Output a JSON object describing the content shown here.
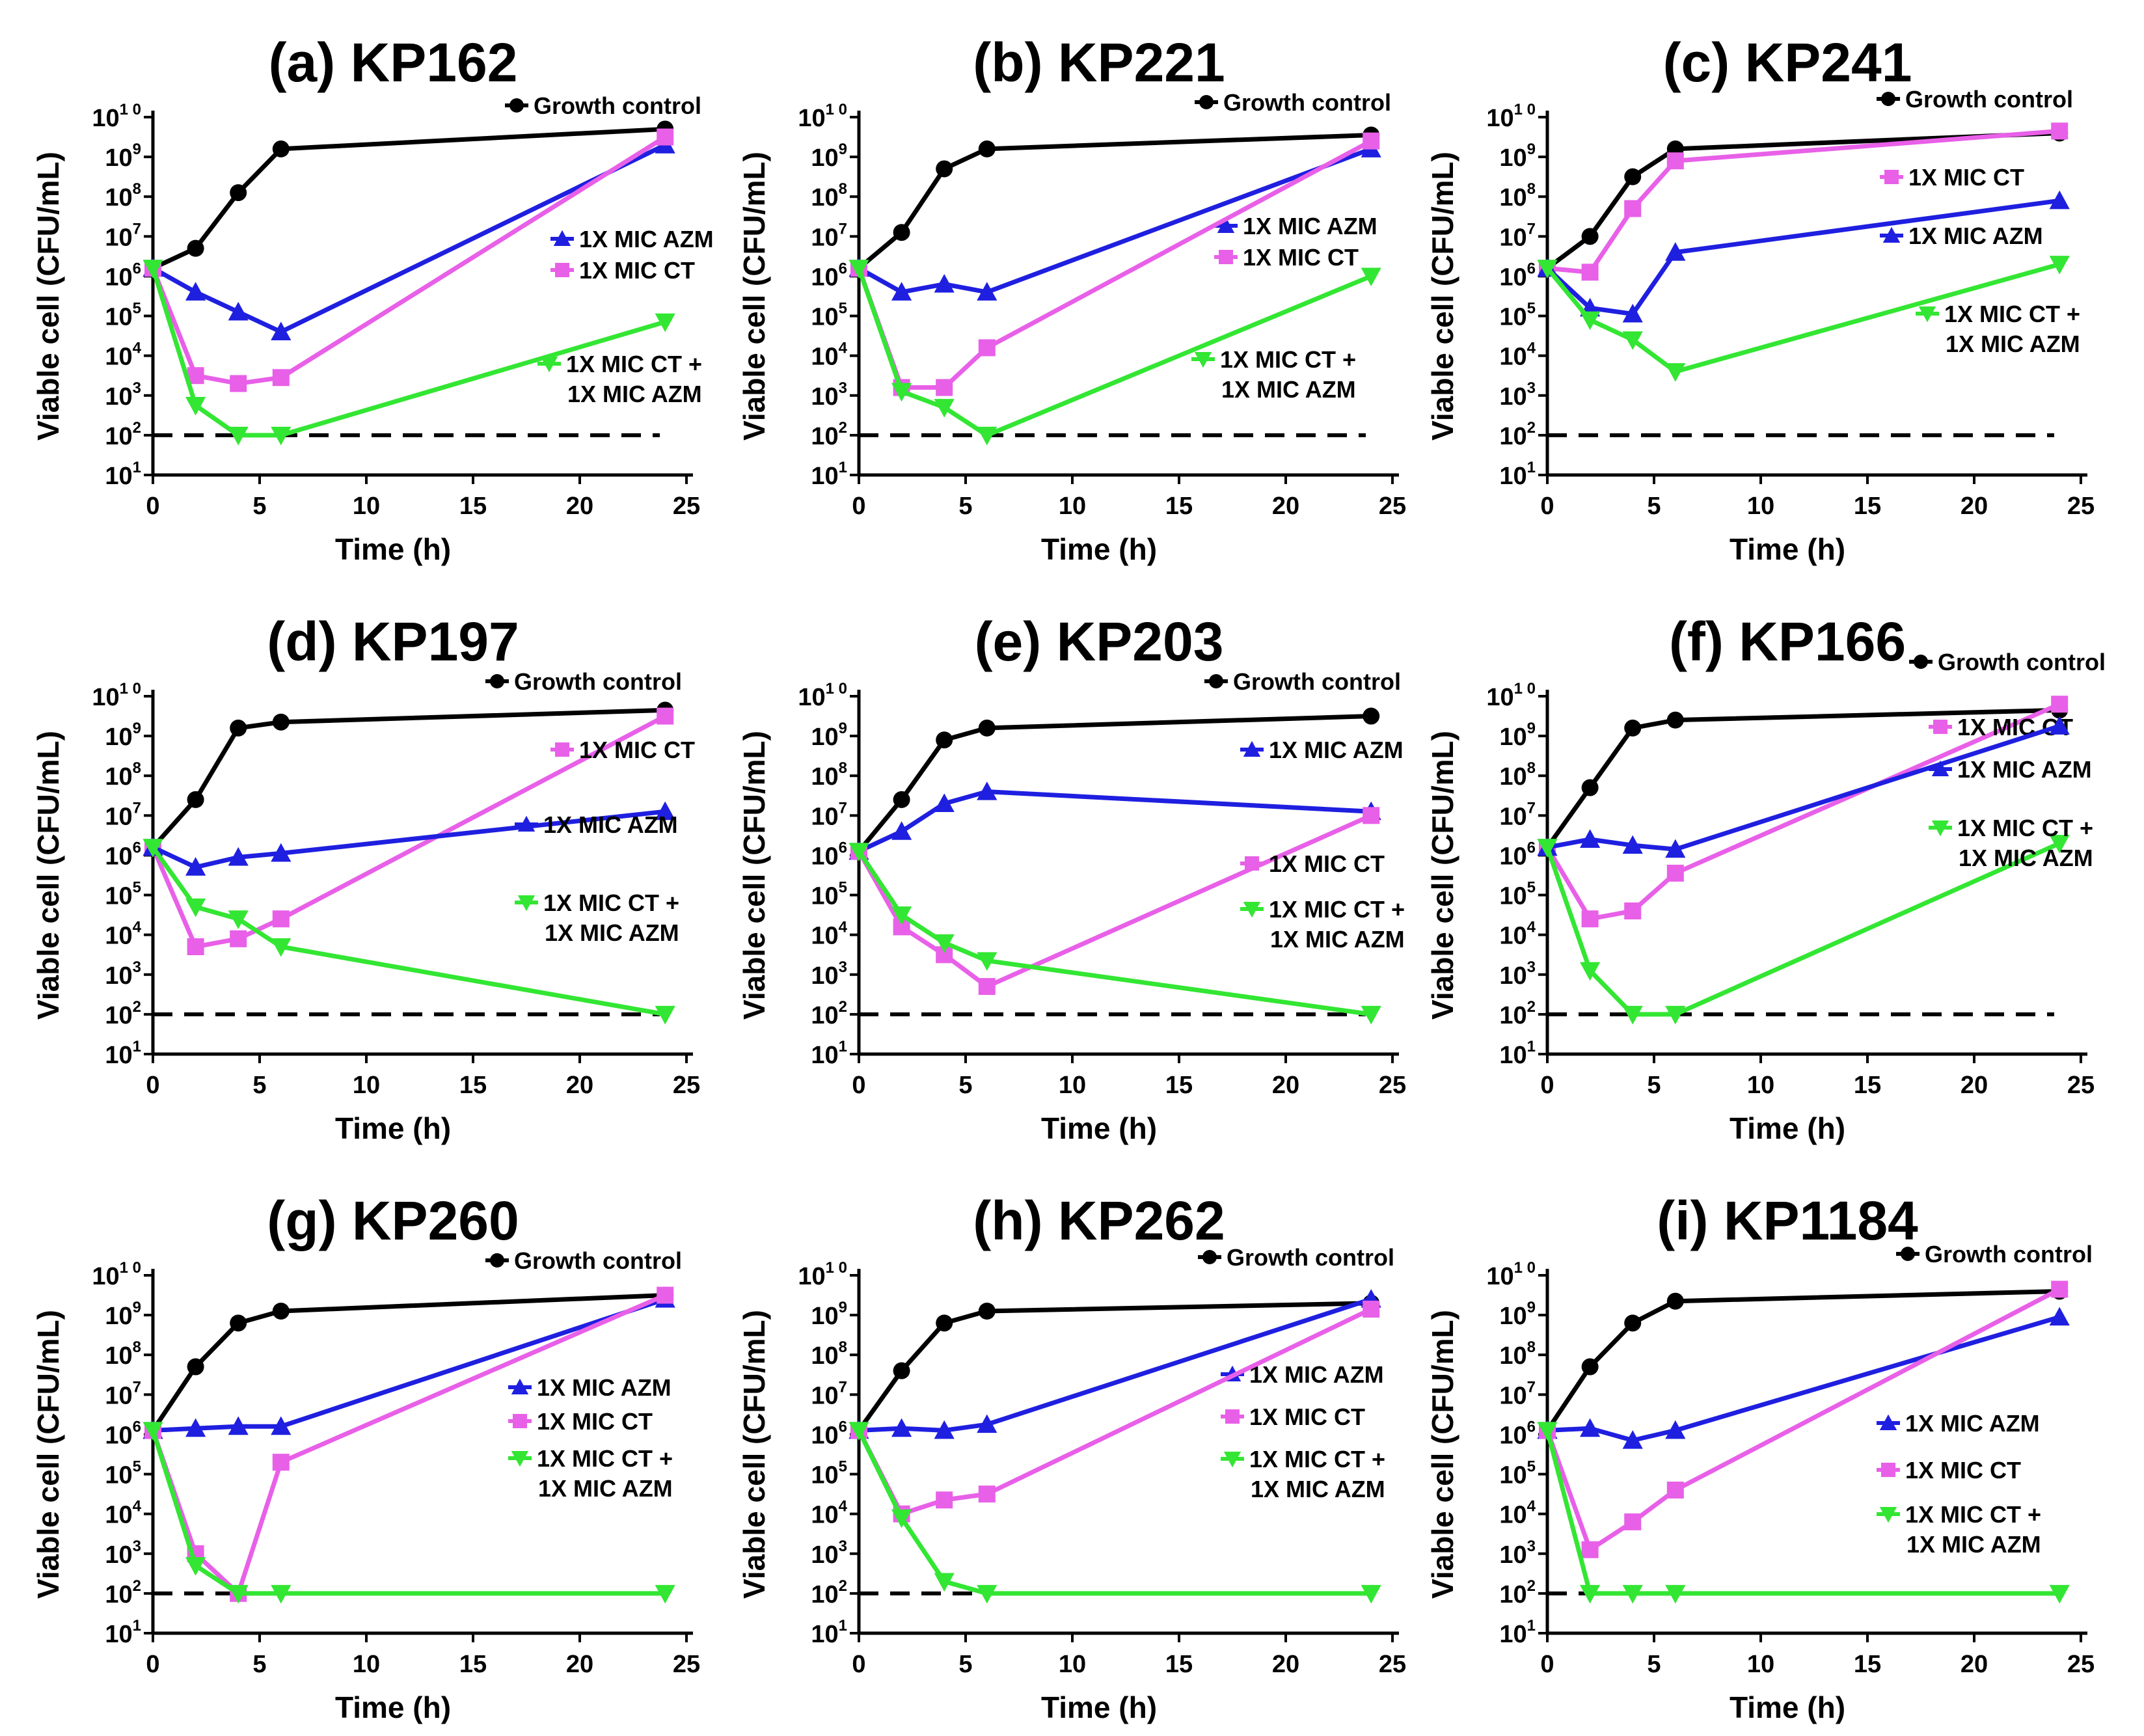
{
  "chart_data": [
    {
      "type": "line",
      "title": "(a) KP162",
      "xlabel": "Time (h)",
      "ylabel": "Viable cell (CFU/mL)",
      "xlim": [
        0,
        25
      ],
      "ylim_log10": [
        1,
        10
      ],
      "x_ticks": [
        0,
        5,
        10,
        15,
        20,
        25
      ],
      "threshold_log10": 2,
      "series": [
        {
          "name": "Growth control",
          "color": "#000000",
          "marker": "circle",
          "x": [
            0,
            2,
            4,
            6,
            24
          ],
          "log10_cfu": [
            6.2,
            6.7,
            8.1,
            9.2,
            9.7
          ]
        },
        {
          "name": "1X MIC AZM",
          "color": "#1f1fe0",
          "marker": "triangle",
          "x": [
            0,
            2,
            4,
            6,
            24
          ],
          "log10_cfu": [
            6.2,
            5.6,
            5.1,
            4.6,
            9.3
          ]
        },
        {
          "name": "1X MIC CT",
          "color": "#e860e8",
          "marker": "square",
          "x": [
            0,
            2,
            4,
            6,
            24
          ],
          "log10_cfu": [
            6.2,
            3.5,
            3.3,
            3.45,
            9.5
          ]
        },
        {
          "name": "1X MIC CT + 1X MIC AZM",
          "color": "#33e633",
          "marker": "triangle-down",
          "x": [
            0,
            2,
            4,
            6,
            24
          ],
          "log10_cfu": [
            6.2,
            2.75,
            2.0,
            2.0,
            4.85
          ]
        }
      ]
    },
    {
      "type": "line",
      "title": "(b) KP221",
      "xlabel": "Time (h)",
      "ylabel": "Viable cell (CFU/mL)",
      "xlim": [
        0,
        25
      ],
      "ylim_log10": [
        1,
        10
      ],
      "x_ticks": [
        0,
        5,
        10,
        15,
        20,
        25
      ],
      "threshold_log10": 2,
      "series": [
        {
          "name": "Growth control",
          "color": "#000000",
          "marker": "circle",
          "x": [
            0,
            2,
            4,
            6,
            24
          ],
          "log10_cfu": [
            6.2,
            7.1,
            8.7,
            9.2,
            9.55
          ]
        },
        {
          "name": "1X MIC AZM",
          "color": "#1f1fe0",
          "marker": "triangle",
          "x": [
            0,
            2,
            4,
            6,
            24
          ],
          "log10_cfu": [
            6.2,
            5.6,
            5.8,
            5.6,
            9.2
          ]
        },
        {
          "name": "1X MIC CT",
          "color": "#e860e8",
          "marker": "square",
          "x": [
            0,
            2,
            4,
            6,
            24
          ],
          "log10_cfu": [
            6.2,
            3.2,
            3.2,
            4.2,
            9.4
          ]
        },
        {
          "name": "1X MIC CT + 1X MIC AZM",
          "color": "#33e633",
          "marker": "triangle-down",
          "x": [
            0,
            2,
            4,
            6,
            24
          ],
          "log10_cfu": [
            6.2,
            3.1,
            2.7,
            2.0,
            6.0
          ]
        }
      ]
    },
    {
      "type": "line",
      "title": "(c) KP241",
      "xlabel": "Time (h)",
      "ylabel": "Viable cell (CFU/mL)",
      "xlim": [
        0,
        25
      ],
      "ylim_log10": [
        1,
        10
      ],
      "x_ticks": [
        0,
        5,
        10,
        15,
        20,
        25
      ],
      "threshold_log10": 2,
      "series": [
        {
          "name": "Growth control",
          "color": "#000000",
          "marker": "circle",
          "x": [
            0,
            2,
            4,
            6,
            24
          ],
          "log10_cfu": [
            6.2,
            7.0,
            8.5,
            9.2,
            9.6
          ]
        },
        {
          "name": "1X MIC CT",
          "color": "#e860e8",
          "marker": "square",
          "x": [
            0,
            2,
            4,
            6,
            24
          ],
          "log10_cfu": [
            6.2,
            6.1,
            7.7,
            8.9,
            9.65
          ]
        },
        {
          "name": "1X MIC AZM",
          "color": "#1f1fe0",
          "marker": "triangle",
          "x": [
            0,
            2,
            4,
            6,
            24
          ],
          "log10_cfu": [
            6.2,
            5.2,
            5.05,
            6.6,
            7.9
          ]
        },
        {
          "name": "1X MIC CT + 1X MIC AZM",
          "color": "#33e633",
          "marker": "triangle-down",
          "x": [
            0,
            2,
            4,
            6,
            24
          ],
          "log10_cfu": [
            6.2,
            4.9,
            4.4,
            3.6,
            6.3
          ]
        }
      ]
    },
    {
      "type": "line",
      "title": "(d) KP197",
      "xlabel": "Time (h)",
      "ylabel": "Viable cell (CFU/mL)",
      "xlim": [
        0,
        25
      ],
      "ylim_log10": [
        1,
        10
      ],
      "x_ticks": [
        0,
        5,
        10,
        15,
        20,
        25
      ],
      "threshold_log10": 2,
      "series": [
        {
          "name": "Growth control",
          "color": "#000000",
          "marker": "circle",
          "x": [
            0,
            2,
            4,
            6,
            24
          ],
          "log10_cfu": [
            6.2,
            7.4,
            9.2,
            9.35,
            9.65
          ]
        },
        {
          "name": "1X MIC CT",
          "color": "#e860e8",
          "marker": "square",
          "x": [
            0,
            2,
            4,
            6,
            24
          ],
          "log10_cfu": [
            6.2,
            3.7,
            3.9,
            4.4,
            9.5
          ]
        },
        {
          "name": "1X MIC AZM",
          "color": "#1f1fe0",
          "marker": "triangle",
          "x": [
            0,
            2,
            4,
            6,
            24
          ],
          "log10_cfu": [
            6.2,
            5.7,
            5.95,
            6.05,
            7.1
          ]
        },
        {
          "name": "1X MIC CT + 1X MIC AZM",
          "color": "#33e633",
          "marker": "triangle-down",
          "x": [
            0,
            2,
            4,
            6,
            24
          ],
          "log10_cfu": [
            6.2,
            4.7,
            4.4,
            3.7,
            2.0
          ]
        }
      ]
    },
    {
      "type": "line",
      "title": "(e) KP203",
      "xlabel": "Time (h)",
      "ylabel": "Viable cell (CFU/mL)",
      "xlim": [
        0,
        25
      ],
      "ylim_log10": [
        1,
        10
      ],
      "x_ticks": [
        0,
        5,
        10,
        15,
        20,
        25
      ],
      "threshold_log10": 2,
      "series": [
        {
          "name": "Growth control",
          "color": "#000000",
          "marker": "circle",
          "x": [
            0,
            2,
            4,
            6,
            24
          ],
          "log10_cfu": [
            6.1,
            7.4,
            8.9,
            9.2,
            9.5
          ]
        },
        {
          "name": "1X MIC AZM",
          "color": "#1f1fe0",
          "marker": "triangle",
          "x": [
            0,
            2,
            4,
            6,
            24
          ],
          "log10_cfu": [
            6.1,
            6.6,
            7.3,
            7.6,
            7.1
          ]
        },
        {
          "name": "1X MIC CT",
          "color": "#e860e8",
          "marker": "square",
          "x": [
            0,
            2,
            4,
            6,
            24
          ],
          "log10_cfu": [
            6.1,
            4.2,
            3.5,
            2.7,
            7.0
          ]
        },
        {
          "name": "1X MIC CT + 1X MIC AZM",
          "color": "#33e633",
          "marker": "triangle-down",
          "x": [
            0,
            2,
            4,
            6,
            24
          ],
          "log10_cfu": [
            6.1,
            4.5,
            3.8,
            3.35,
            2.0
          ]
        }
      ]
    },
    {
      "type": "line",
      "title": "(f) KP166",
      "xlabel": "Time (h)",
      "ylabel": "Viable cell (CFU/mL)",
      "xlim": [
        0,
        25
      ],
      "ylim_log10": [
        1,
        10
      ],
      "x_ticks": [
        0,
        5,
        10,
        15,
        20,
        25
      ],
      "threshold_log10": 2,
      "series": [
        {
          "name": "Growth control",
          "color": "#000000",
          "marker": "circle",
          "x": [
            0,
            2,
            4,
            6,
            24
          ],
          "log10_cfu": [
            6.2,
            7.7,
            9.2,
            9.4,
            9.65
          ]
        },
        {
          "name": "1X MIC CT",
          "color": "#e860e8",
          "marker": "square",
          "x": [
            0,
            2,
            4,
            6,
            24
          ],
          "log10_cfu": [
            6.2,
            4.4,
            4.6,
            5.55,
            9.8
          ]
        },
        {
          "name": "1X MIC AZM",
          "color": "#1f1fe0",
          "marker": "triangle",
          "x": [
            0,
            2,
            4,
            6,
            24
          ],
          "log10_cfu": [
            6.2,
            6.4,
            6.25,
            6.15,
            9.25
          ]
        },
        {
          "name": "1X MIC CT + 1X MIC AZM",
          "color": "#33e633",
          "marker": "triangle-down",
          "x": [
            0,
            2,
            4,
            6,
            24
          ],
          "log10_cfu": [
            6.2,
            3.1,
            2.0,
            2.0,
            6.3
          ]
        }
      ]
    },
    {
      "type": "line",
      "title": "(g) KP260",
      "xlabel": "Time (h)",
      "ylabel": "Viable cell (CFU/mL)",
      "xlim": [
        0,
        25
      ],
      "ylim_log10": [
        1,
        10
      ],
      "x_ticks": [
        0,
        5,
        10,
        15,
        20,
        25
      ],
      "threshold_log10": 2,
      "series": [
        {
          "name": "Growth control",
          "color": "#000000",
          "marker": "circle",
          "x": [
            0,
            2,
            4,
            6,
            24
          ],
          "log10_cfu": [
            6.1,
            7.7,
            8.8,
            9.1,
            9.5
          ]
        },
        {
          "name": "1X MIC AZM",
          "color": "#1f1fe0",
          "marker": "triangle",
          "x": [
            0,
            2,
            4,
            6,
            24
          ],
          "log10_cfu": [
            6.1,
            6.15,
            6.2,
            6.2,
            9.4
          ]
        },
        {
          "name": "1X MIC CT",
          "color": "#e860e8",
          "marker": "square",
          "x": [
            0,
            2,
            4,
            6,
            24
          ],
          "log10_cfu": [
            6.1,
            3.0,
            2.0,
            5.3,
            9.5
          ]
        },
        {
          "name": "1X MIC CT + 1X MIC AZM",
          "color": "#33e633",
          "marker": "triangle-down",
          "x": [
            0,
            2,
            4,
            6,
            24
          ],
          "log10_cfu": [
            6.1,
            2.7,
            2.0,
            2.0,
            2.0
          ]
        }
      ]
    },
    {
      "type": "line",
      "title": "(h) KP262",
      "xlabel": "Time (h)",
      "ylabel": "Viable cell (CFU/mL)",
      "xlim": [
        0,
        25
      ],
      "ylim_log10": [
        1,
        10
      ],
      "x_ticks": [
        0,
        5,
        10,
        15,
        20,
        25
      ],
      "threshold_log10": 2,
      "series": [
        {
          "name": "Growth control",
          "color": "#000000",
          "marker": "circle",
          "x": [
            0,
            2,
            4,
            6,
            24
          ],
          "log10_cfu": [
            6.1,
            7.6,
            8.8,
            9.1,
            9.3
          ]
        },
        {
          "name": "1X MIC AZM",
          "color": "#1f1fe0",
          "marker": "triangle",
          "x": [
            0,
            2,
            4,
            6,
            24
          ],
          "log10_cfu": [
            6.1,
            6.15,
            6.1,
            6.25,
            9.4
          ]
        },
        {
          "name": "1X MIC CT",
          "color": "#e860e8",
          "marker": "square",
          "x": [
            0,
            2,
            4,
            6,
            24
          ],
          "log10_cfu": [
            6.1,
            4.0,
            4.35,
            4.5,
            9.15
          ]
        },
        {
          "name": "1X MIC CT + 1X MIC AZM",
          "color": "#33e633",
          "marker": "triangle-down",
          "x": [
            0,
            2,
            4,
            6,
            24
          ],
          "log10_cfu": [
            6.1,
            3.9,
            2.3,
            2.0,
            2.0
          ]
        }
      ]
    },
    {
      "type": "line",
      "title": "(i) KP1184",
      "xlabel": "Time (h)",
      "ylabel": "Viable cell (CFU/mL)",
      "xlim": [
        0,
        25
      ],
      "ylim_log10": [
        1,
        10
      ],
      "x_ticks": [
        0,
        5,
        10,
        15,
        20,
        25
      ],
      "threshold_log10": 2,
      "series": [
        {
          "name": "Growth control",
          "color": "#000000",
          "marker": "circle",
          "x": [
            0,
            2,
            4,
            6,
            24
          ],
          "log10_cfu": [
            6.1,
            7.7,
            8.8,
            9.35,
            9.6
          ]
        },
        {
          "name": "1X MIC AZM",
          "color": "#1f1fe0",
          "marker": "triangle",
          "x": [
            0,
            2,
            4,
            6,
            24
          ],
          "log10_cfu": [
            6.1,
            6.15,
            5.85,
            6.1,
            8.95
          ]
        },
        {
          "name": "1X MIC CT",
          "color": "#e860e8",
          "marker": "square",
          "x": [
            0,
            2,
            4,
            6,
            24
          ],
          "log10_cfu": [
            6.1,
            3.1,
            3.8,
            4.6,
            9.65
          ]
        },
        {
          "name": "1X MIC CT + 1X MIC AZM",
          "color": "#33e633",
          "marker": "triangle-down",
          "x": [
            0,
            2,
            4,
            6,
            24
          ],
          "log10_cfu": [
            6.1,
            2.0,
            2.0,
            2.0,
            2.0
          ]
        }
      ]
    }
  ]
}
